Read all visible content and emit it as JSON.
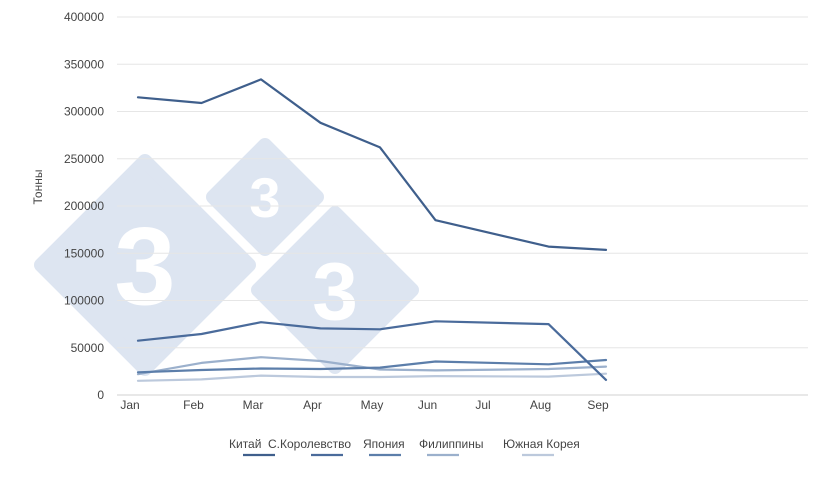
{
  "chart_data": {
    "type": "line",
    "categories": [
      "Jan",
      "Feb",
      "Mar",
      "Apr",
      "May",
      "Jun",
      "Jul",
      "Aug",
      "Sep"
    ],
    "x_positions": [
      0,
      1,
      2,
      3,
      4,
      5,
      6,
      7,
      8
    ],
    "ylabel": "Тонны",
    "xlabel": "",
    "ylim": [
      0,
      400000
    ],
    "yticks": [
      0,
      50000,
      100000,
      150000,
      200000,
      250000,
      300000,
      350000,
      400000
    ],
    "ytick_labels": [
      "0",
      "50000",
      "100000",
      "150000",
      "200000",
      "250000",
      "300000",
      "350000",
      "400000"
    ],
    "grid": "horizontal",
    "legend_position": "bottom",
    "series": [
      {
        "name": "Китай",
        "color": "#3f5f8c",
        "points": [
          [
            0,
            315000
          ],
          [
            1,
            309000
          ],
          [
            2,
            334000
          ],
          [
            3,
            288000
          ],
          [
            4,
            262000
          ],
          [
            5,
            185000
          ],
          [
            7,
            157000
          ],
          [
            8,
            153500
          ]
        ]
      },
      {
        "name": "С.Королевство",
        "color": "#4a6b9b",
        "points": [
          [
            0,
            57500
          ],
          [
            1,
            64500
          ],
          [
            2,
            77000
          ],
          [
            3,
            70500
          ],
          [
            4,
            69500
          ],
          [
            5,
            78000
          ],
          [
            7,
            75000
          ],
          [
            8,
            16000
          ]
        ]
      },
      {
        "name": "Япония",
        "color": "#5c7eaa",
        "points": [
          [
            0,
            24000
          ],
          [
            1,
            26500
          ],
          [
            2,
            28000
          ],
          [
            3,
            27500
          ],
          [
            4,
            29000
          ],
          [
            5,
            35500
          ],
          [
            7,
            32500
          ],
          [
            8,
            37000
          ]
        ]
      },
      {
        "name": "Филиппины",
        "color": "#9bb0cc",
        "points": [
          [
            0,
            22000
          ],
          [
            1,
            34000
          ],
          [
            2,
            40000
          ],
          [
            3,
            36000
          ],
          [
            4,
            27000
          ],
          [
            5,
            26000
          ],
          [
            7,
            27500
          ],
          [
            8,
            30000
          ]
        ]
      },
      {
        "name": "Южная Корея",
        "color": "#bcc9dc",
        "points": [
          [
            0,
            15000
          ],
          [
            1,
            16500
          ],
          [
            2,
            20500
          ],
          [
            3,
            19000
          ],
          [
            4,
            19000
          ],
          [
            5,
            20000
          ],
          [
            7,
            19500
          ],
          [
            8,
            22500
          ]
        ]
      }
    ],
    "watermark": {
      "text": "333",
      "color": "#dde5f1"
    }
  }
}
